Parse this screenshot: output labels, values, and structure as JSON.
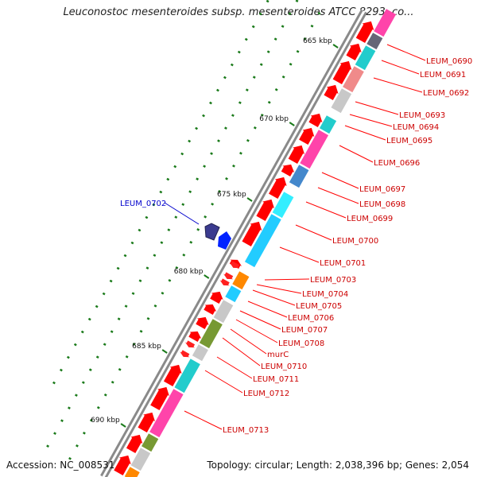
{
  "title": "Leuconostoc mesenteroides subsp. mesenteroides ATCC 8293, co...",
  "footer": {
    "accession": "Accession: NC_008531",
    "topology": "Topology: circular; Length: 2,038,396 bp; Genes: 2,054"
  },
  "ticks": [
    "665 kbp",
    "670 kbp",
    "675 kbp",
    "680 kbp",
    "685 kbp",
    "690 kbp"
  ],
  "colors": {
    "forward_cds": "#ff0000",
    "label_line": "#ff0000",
    "highlight_label": "#0000cc",
    "backbone": "#888888",
    "tick": "#1a7a1a"
  },
  "highlight_gene": {
    "label": "LEUM_0702"
  },
  "genes": [
    "LEUM_0690",
    "LEUM_0691",
    "LEUM_0692",
    "LEUM_0693",
    "LEUM_0694",
    "LEUM_0695",
    "LEUM_0696",
    "LEUM_0697",
    "LEUM_0698",
    "LEUM_0699",
    "LEUM_0700",
    "LEUM_0701",
    "LEUM_0703",
    "LEUM_0704",
    "LEUM_0705",
    "LEUM_0706",
    "LEUM_0707",
    "LEUM_0708",
    "murC",
    "LEUM_0710",
    "LEUM_0711",
    "LEUM_0712",
    "LEUM_0713"
  ]
}
